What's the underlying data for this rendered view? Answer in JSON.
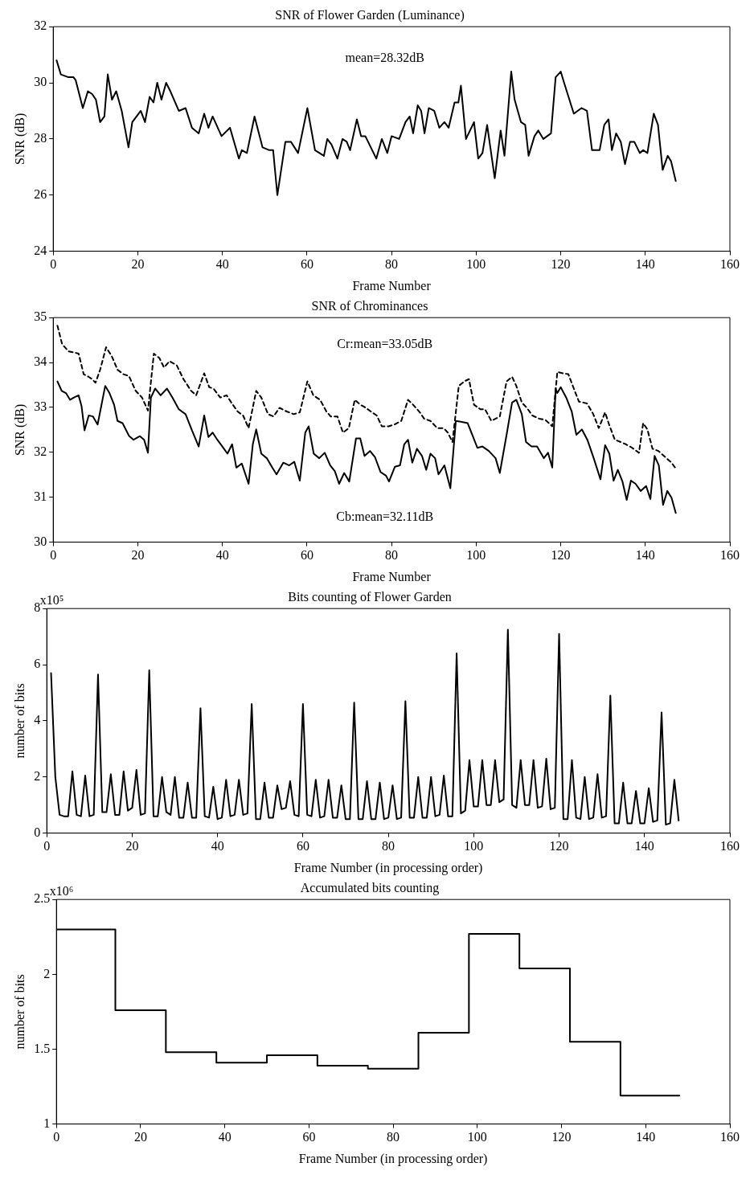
{
  "chart_data": [
    {
      "type": "line",
      "title": "SNR of Flower Garden (Luminance)",
      "xlabel": "Frame Number",
      "ylabel": "SNR (dB)",
      "annotations": [
        "mean=28.32dB"
      ],
      "xlim": [
        0,
        160
      ],
      "xticks": [
        0,
        20,
        40,
        60,
        80,
        100,
        120,
        140,
        160
      ],
      "ylim": [
        24,
        32
      ],
      "yticks": [
        24,
        26,
        28,
        30,
        32
      ],
      "grid": false,
      "marker": "none",
      "series": [
        {
          "color": "#000000",
          "line_style": "solid",
          "x": [
            0.8,
            1.8,
            3.6,
            4.8,
            5.3,
            7.0,
            8.2,
            9.2,
            10.1,
            11.1,
            12.1,
            12.9,
            13.9,
            14.9,
            16.2,
            17.8,
            18.7,
            20.7,
            21.7,
            22.8,
            23.7,
            24.6,
            25.6,
            26.7,
            27.7,
            29.7,
            31.3,
            32.8,
            34.4,
            35.7,
            36.7,
            37.7,
            39.8,
            41.8,
            43.9,
            44.6,
            45.8,
            47.6,
            49.5,
            51.1,
            52.0,
            53.0,
            54.9,
            56.2,
            57.9,
            60.1,
            61.9,
            64.0,
            64.8,
            65.8,
            67.2,
            68.4,
            69.4,
            70.2,
            71.8,
            72.8,
            73.8,
            76.4,
            77.7,
            79.0,
            80.0,
            81.8,
            83.3,
            84.3,
            85.1,
            86.2,
            87.0,
            87.8,
            88.8,
            90.1,
            91.3,
            92.5,
            93.5,
            94.9,
            95.8,
            96.4,
            97.6,
            99.5,
            100.5,
            101.5,
            102.6,
            104.4,
            105.8,
            106.7,
            108.3,
            109.1,
            110.6,
            111.6,
            112.4,
            113.8,
            114.7,
            115.9,
            117.7,
            118.8,
            120.0,
            120.8,
            123.1,
            124.9,
            126.2,
            127.4,
            129.2,
            130.3,
            131.3,
            132.1,
            133.1,
            134.2,
            135.2,
            136.4,
            137.4,
            138.7,
            139.5,
            140.5,
            142.0,
            143.0,
            144.1,
            145.3,
            146.1,
            147.2
          ],
          "values": [
            30.8,
            30.3,
            30.2,
            30.2,
            30.1,
            29.1,
            29.7,
            29.6,
            29.4,
            28.6,
            28.8,
            30.3,
            29.4,
            29.7,
            29.0,
            27.7,
            28.6,
            29.0,
            28.6,
            29.5,
            29.3,
            30.0,
            29.4,
            30.0,
            29.7,
            29.0,
            29.1,
            28.4,
            28.2,
            28.9,
            28.4,
            28.8,
            28.1,
            28.4,
            27.3,
            27.6,
            27.5,
            28.8,
            27.7,
            27.6,
            27.6,
            26.0,
            27.9,
            27.9,
            27.5,
            29.1,
            27.6,
            27.4,
            28.0,
            27.8,
            27.3,
            28.0,
            27.9,
            27.6,
            28.7,
            28.1,
            28.1,
            27.3,
            28.0,
            27.5,
            28.1,
            28.0,
            28.6,
            28.8,
            28.2,
            29.2,
            29.0,
            28.2,
            29.1,
            29.0,
            28.4,
            28.6,
            28.4,
            29.3,
            29.3,
            29.9,
            28.0,
            28.6,
            27.3,
            27.5,
            28.5,
            26.6,
            28.3,
            27.4,
            30.4,
            29.4,
            28.6,
            28.5,
            27.4,
            28.1,
            28.3,
            28.0,
            28.2,
            30.2,
            30.4,
            30.0,
            28.9,
            29.1,
            29.0,
            27.6,
            27.6,
            28.5,
            28.7,
            27.6,
            28.2,
            27.9,
            27.1,
            27.9,
            27.9,
            27.5,
            27.6,
            27.5,
            28.9,
            28.5,
            26.9,
            27.4,
            27.2,
            26.5
          ]
        }
      ]
    },
    {
      "type": "line",
      "title": "SNR of Chrominances",
      "xlabel": "Frame Number",
      "ylabel": "SNR (dB)",
      "annotations": [
        "Cr:mean=33.05dB",
        "Cb:mean=32.11dB"
      ],
      "xlim": [
        0,
        160
      ],
      "xticks": [
        0,
        20,
        40,
        60,
        80,
        100,
        120,
        140,
        160
      ],
      "ylim": [
        30,
        35
      ],
      "yticks": [
        30,
        31,
        32,
        33,
        34,
        35
      ],
      "grid": false,
      "marker": "none",
      "series": [
        {
          "color": "#000000",
          "line_style": "dashed",
          "x": [
            1,
            2.1,
            3.6,
            5.1,
            6,
            7.2,
            8.4,
            9.2,
            10,
            11.1,
            12.5,
            13.8,
            15.2,
            16.6,
            17.9,
            19.5,
            21,
            22.4,
            23.8,
            25.1,
            26.2,
            27.5,
            29.2,
            30.8,
            32.6,
            33.8,
            35.7,
            36.9,
            37.9,
            39.5,
            41,
            42.1,
            43.6,
            44.9,
            46.2,
            48,
            49.2,
            50.8,
            52.1,
            53.5,
            55.2,
            56.9,
            58.3,
            60.1,
            61.5,
            63.1,
            64.6,
            65.6,
            67.2,
            68.5,
            69.9,
            71.3,
            72.6,
            73.6,
            75.1,
            76.5,
            77.7,
            79.3,
            80.7,
            82.3,
            83.9,
            85.1,
            86.7,
            87.7,
            89.2,
            90.8,
            92.3,
            93.3,
            94.4,
            95.9,
            97.2,
            98.3,
            99.5,
            101,
            102.1,
            103.6,
            105.6,
            107.2,
            108.5,
            109.5,
            110.8,
            112,
            113.3,
            114.9,
            116.4,
            118,
            119.2,
            120.5,
            121.8,
            123.1,
            124.3,
            126.2,
            127.7,
            129,
            130.5,
            131.5,
            132.8,
            134.2,
            135.4,
            136.9,
            138.5,
            139.5,
            140.5,
            141.7,
            143.1,
            144.4,
            146.2,
            147.2
          ],
          "values": [
            34.82,
            34.41,
            34.25,
            34.22,
            34.2,
            33.74,
            33.68,
            33.63,
            33.55,
            33.84,
            34.34,
            34.15,
            33.84,
            33.74,
            33.7,
            33.37,
            33.22,
            32.93,
            34.2,
            34.1,
            33.89,
            34.03,
            33.94,
            33.63,
            33.37,
            33.27,
            33.76,
            33.45,
            33.42,
            33.22,
            33.27,
            33.11,
            32.91,
            32.82,
            32.54,
            33.37,
            33.22,
            32.85,
            32.8,
            32.99,
            32.91,
            32.85,
            32.89,
            33.58,
            33.27,
            33.17,
            32.91,
            32.8,
            32.8,
            32.44,
            32.54,
            33.17,
            33.06,
            33.01,
            32.91,
            32.82,
            32.58,
            32.58,
            32.62,
            32.7,
            33.17,
            33.06,
            32.89,
            32.75,
            32.7,
            32.54,
            32.54,
            32.44,
            32.23,
            33.48,
            33.58,
            33.63,
            33.06,
            32.96,
            32.96,
            32.7,
            32.8,
            33.58,
            33.68,
            33.48,
            33.11,
            32.99,
            32.82,
            32.75,
            32.72,
            32.58,
            33.79,
            33.76,
            33.74,
            33.42,
            33.13,
            33.09,
            32.85,
            32.54,
            32.89,
            32.6,
            32.28,
            32.23,
            32.18,
            32.1,
            31.99,
            32.65,
            32.51,
            32.08,
            32.03,
            31.92,
            31.77,
            31.64
          ]
        },
        {
          "color": "#000000",
          "line_style": "solid",
          "x": [
            1,
            2,
            3,
            4,
            4.9,
            6,
            6.7,
            7.4,
            8.4,
            9.4,
            10.5,
            12.3,
            13.3,
            14.4,
            15.2,
            16.4,
            17.9,
            19,
            20.5,
            21.5,
            22.4,
            23.1,
            24.1,
            25.4,
            26.9,
            28.2,
            29.7,
            31.3,
            32.8,
            34.4,
            35.7,
            36.7,
            37.7,
            38.8,
            40,
            41.2,
            42.3,
            43.3,
            44.6,
            46.2,
            47.2,
            48,
            49.2,
            50.5,
            51.8,
            52.8,
            54.4,
            55.8,
            57,
            58.3,
            59.6,
            60.4,
            61.6,
            62.9,
            64.2,
            65.5,
            66.6,
            67.6,
            68.8,
            70,
            71.6,
            72.6,
            73.6,
            74.9,
            76.1,
            77.4,
            78.7,
            79.4,
            80.8,
            82,
            83,
            83.9,
            84.9,
            86,
            87.2,
            88.2,
            89.2,
            90.3,
            91.1,
            92.5,
            93.9,
            95.2,
            96.4,
            98,
            99,
            100.3,
            101.5,
            103,
            104.6,
            105.6,
            107.2,
            108.5,
            109.5,
            110.8,
            111.8,
            113.1,
            114.4,
            116,
            117,
            118,
            118.8,
            119.2,
            120,
            121.3,
            122.6,
            123.7,
            125,
            126.3,
            127.8,
            129.4,
            130.5,
            131.5,
            132.5,
            133.5,
            134.6,
            135.6,
            136.6,
            137.7,
            138.9,
            140.2,
            141.2,
            142.2,
            143.2,
            144.2,
            145.2,
            146.2,
            147.2
          ],
          "values": [
            33.58,
            33.37,
            33.32,
            33.17,
            33.22,
            33.27,
            33.03,
            32.49,
            32.82,
            32.8,
            32.62,
            33.48,
            33.32,
            33.06,
            32.7,
            32.65,
            32.37,
            32.28,
            32.36,
            32.28,
            31.99,
            33.22,
            33.42,
            33.27,
            33.42,
            33.22,
            32.96,
            32.85,
            32.49,
            32.13,
            32.82,
            32.34,
            32.44,
            32.28,
            32.13,
            31.97,
            32.18,
            31.66,
            31.75,
            31.3,
            32.18,
            32.51,
            31.97,
            31.87,
            31.66,
            31.51,
            31.77,
            31.71,
            31.79,
            31.37,
            32.44,
            32.58,
            31.97,
            31.87,
            31.99,
            31.71,
            31.58,
            31.3,
            31.54,
            31.35,
            32.31,
            32.31,
            31.92,
            32.03,
            31.89,
            31.56,
            31.48,
            31.35,
            31.68,
            31.71,
            32.18,
            32.28,
            31.77,
            32.08,
            31.92,
            31.61,
            31.97,
            31.87,
            31.51,
            31.71,
            31.2,
            32.7,
            32.68,
            32.65,
            32.41,
            32.1,
            32.13,
            32.03,
            31.87,
            31.54,
            32.39,
            33.11,
            33.17,
            32.85,
            32.23,
            32.13,
            32.13,
            31.87,
            31.99,
            31.66,
            33.42,
            33.32,
            33.45,
            33.22,
            32.91,
            32.39,
            32.51,
            32.28,
            31.87,
            31.4,
            32.16,
            31.97,
            31.37,
            31.61,
            31.35,
            30.94,
            31.37,
            31.3,
            31.14,
            31.25,
            30.96,
            31.92,
            31.71,
            30.83,
            31.14,
            30.99,
            30.65
          ]
        }
      ]
    },
    {
      "type": "line",
      "title": "Bits counting of Flower Garden",
      "xlabel": "Frame Number (in processing order)",
      "ylabel": "number of bits",
      "annotations": [
        "x10⁵"
      ],
      "xlim": [
        0,
        160
      ],
      "xticks": [
        0,
        20,
        40,
        60,
        80,
        100,
        120,
        140,
        160
      ],
      "ylim": [
        0,
        8
      ],
      "yticks": [
        0,
        2,
        4,
        6,
        8
      ],
      "grid": false,
      "marker": "none",
      "series": [
        {
          "color": "#000000",
          "line_style": "solid",
          "x": [
            1,
            2,
            3,
            4,
            5,
            6,
            7,
            8,
            9,
            10,
            11,
            12,
            13,
            14,
            15,
            16,
            17,
            18,
            19,
            20,
            21,
            22,
            23,
            24,
            25,
            26,
            27,
            28,
            29,
            30,
            31,
            32,
            33,
            34,
            35,
            36,
            37,
            38,
            39,
            40,
            41,
            42,
            43,
            44,
            45,
            46,
            47,
            48,
            49,
            50,
            51,
            52,
            53,
            54,
            55,
            56,
            57,
            58,
            59,
            60,
            61,
            62,
            63,
            64,
            65,
            66,
            67,
            68,
            69,
            70,
            71,
            72,
            73,
            74,
            75,
            76,
            77,
            78,
            79,
            80,
            81,
            82,
            83,
            84,
            85,
            86,
            87,
            88,
            89,
            90,
            91,
            92,
            93,
            94,
            95,
            96,
            97,
            98,
            99,
            100,
            101,
            102,
            103,
            104,
            105,
            106,
            107,
            108,
            109,
            110,
            111,
            112,
            113,
            114,
            115,
            116,
            117,
            118,
            119,
            120,
            121,
            122,
            123,
            124,
            125,
            126,
            127,
            128,
            129,
            130,
            131,
            132,
            133,
            134,
            135,
            136,
            137,
            138,
            139,
            140,
            141,
            142,
            143,
            144,
            145,
            146,
            147,
            148
          ],
          "values": [
            5.7,
            2.0,
            0.65,
            0.6,
            0.6,
            2.2,
            0.65,
            0.6,
            2.05,
            0.6,
            0.65,
            5.65,
            0.75,
            0.75,
            2.1,
            0.65,
            0.65,
            2.2,
            0.8,
            0.9,
            2.25,
            0.65,
            0.7,
            5.8,
            0.6,
            0.6,
            2.0,
            0.75,
            0.65,
            2.0,
            0.55,
            0.55,
            1.8,
            0.55,
            0.55,
            4.45,
            0.6,
            0.55,
            1.65,
            0.5,
            0.55,
            1.9,
            0.6,
            0.65,
            1.9,
            0.65,
            0.7,
            4.6,
            0.5,
            0.5,
            1.8,
            0.55,
            0.55,
            1.7,
            0.85,
            0.9,
            1.85,
            0.65,
            0.6,
            4.6,
            0.65,
            0.6,
            1.9,
            0.55,
            0.6,
            1.9,
            0.55,
            0.55,
            1.7,
            0.5,
            0.5,
            4.65,
            0.5,
            0.5,
            1.85,
            0.5,
            0.5,
            1.8,
            0.5,
            0.55,
            1.7,
            0.5,
            0.55,
            4.7,
            0.55,
            0.55,
            2.0,
            0.55,
            0.55,
            2.0,
            0.6,
            0.65,
            2.05,
            0.6,
            0.6,
            6.4,
            0.7,
            0.8,
            2.6,
            0.95,
            0.95,
            2.6,
            1.0,
            1.0,
            2.6,
            1.1,
            1.2,
            7.25,
            1.0,
            0.9,
            2.6,
            1.0,
            1.0,
            2.6,
            0.9,
            0.95,
            2.65,
            0.85,
            0.9,
            7.1,
            0.5,
            0.5,
            2.6,
            0.55,
            0.5,
            2.0,
            0.5,
            0.55,
            2.1,
            0.55,
            0.6,
            4.9,
            0.35,
            0.35,
            1.8,
            0.35,
            0.35,
            1.5,
            0.35,
            0.35,
            1.6,
            0.4,
            0.45,
            4.3,
            0.3,
            0.35,
            1.9,
            0.45
          ]
        }
      ]
    },
    {
      "type": "step",
      "title": "Accumulated bits counting",
      "xlabel": "Frame Number (in processing order)",
      "ylabel": "number of bits",
      "annotations": [
        "x10⁶"
      ],
      "xlim": [
        0,
        160
      ],
      "xticks": [
        0,
        20,
        40,
        60,
        80,
        100,
        120,
        140,
        160
      ],
      "ylim": [
        1,
        2.5
      ],
      "yticks": [
        1,
        1.5,
        2,
        2.5
      ],
      "grid": false,
      "marker": "none",
      "series": [
        {
          "color": "#000000",
          "line_style": "solid",
          "x": [
            0,
            14,
            26,
            38,
            50,
            62,
            74,
            86,
            98,
            110,
            122,
            134,
            148
          ],
          "values": [
            2.3,
            1.76,
            1.48,
            1.41,
            1.46,
            1.39,
            1.37,
            1.61,
            2.27,
            2.04,
            1.55,
            1.19,
            1.19
          ]
        }
      ]
    }
  ]
}
